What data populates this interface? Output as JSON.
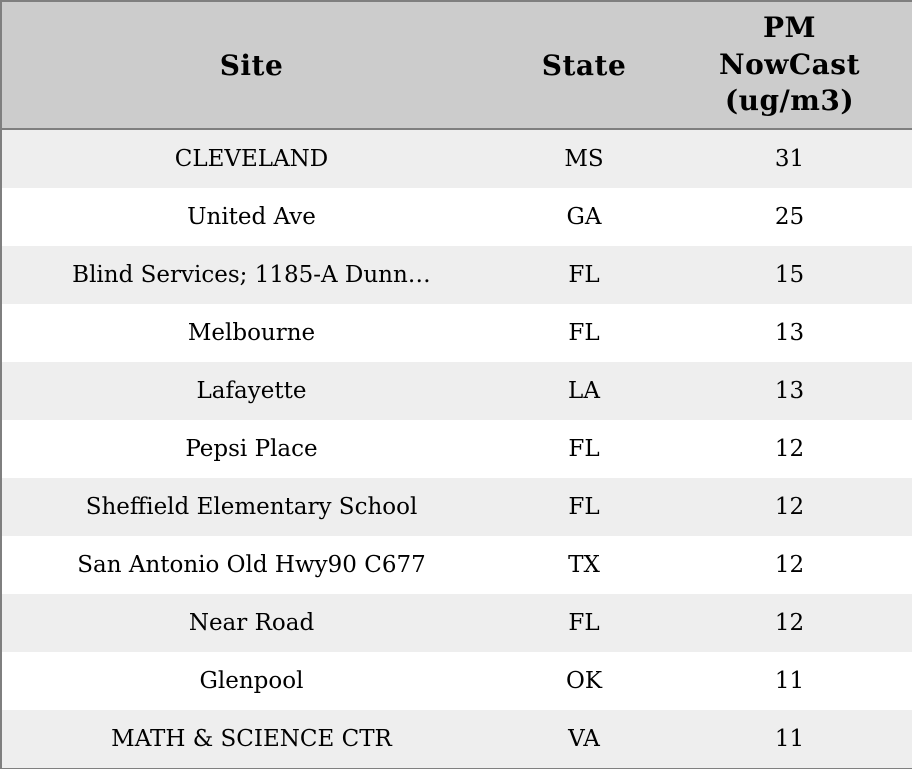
{
  "chart_data": {
    "type": "table",
    "header": {
      "site": "Site",
      "state": "State",
      "pm": "PM\nNowCast\n(ug/m3)"
    },
    "columns": [
      "Site",
      "State",
      "PM NowCast (ug/m3)"
    ],
    "rows": [
      {
        "site": "CLEVELAND",
        "state": "MS",
        "pm": "31"
      },
      {
        "site": "United Ave",
        "state": "GA",
        "pm": "25"
      },
      {
        "site": "Blind Services; 1185-A Dunn…",
        "state": "FL",
        "pm": "15"
      },
      {
        "site": "Melbourne",
        "state": "FL",
        "pm": "13"
      },
      {
        "site": "Lafayette",
        "state": "LA",
        "pm": "13"
      },
      {
        "site": "Pepsi Place",
        "state": "FL",
        "pm": "12"
      },
      {
        "site": "Sheffield Elementary School",
        "state": "FL",
        "pm": "12"
      },
      {
        "site": "San Antonio Old Hwy90 C677",
        "state": "TX",
        "pm": "12"
      },
      {
        "site": "Near Road",
        "state": "FL",
        "pm": "12"
      },
      {
        "site": "Glenpool",
        "state": "OK",
        "pm": "11"
      },
      {
        "site": "MATH & SCIENCE CTR",
        "state": "VA",
        "pm": "11"
      }
    ]
  },
  "colors": {
    "header_bg": "#cccccc",
    "row_alt_bg": "#eeeeee",
    "row_bg": "#ffffff",
    "border": "#7f7f7f",
    "text": "#000000"
  }
}
